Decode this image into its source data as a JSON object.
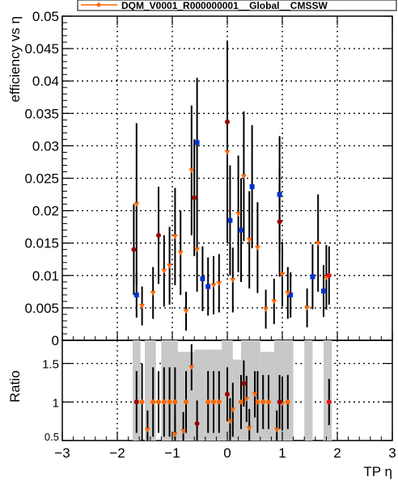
{
  "legend": {
    "entry": "DQM_V0001_R000000001__Global__CMSSW"
  },
  "colors": {
    "series_orange": "#ff6600",
    "series_darkred": "#990000",
    "series_blue": "#0033cc",
    "series_red": "#ee1111",
    "ratio_band": "#c8c8c8"
  },
  "chart_data": [
    {
      "type": "scatter",
      "panel": "top",
      "ylabel": "efficiency vs η",
      "xlim": [
        -3,
        3
      ],
      "ylim": [
        0,
        0.05
      ],
      "x_ticks": [
        -3,
        -2,
        -1,
        0,
        1,
        2,
        3
      ],
      "y_ticks": [
        "0",
        "0.005",
        "0.01",
        "0.015",
        "0.02",
        "0.025",
        "0.03",
        "0.035",
        "0.04",
        "0.045",
        "0.05"
      ],
      "grid": true,
      "legend_placement": "top",
      "series": [
        {
          "marker": "blue-square",
          "points": [
            {
              "x": -1.65,
              "y": 0.007,
              "err": 0.0035
            },
            {
              "x": -0.55,
              "y": 0.0305,
              "err": 0.01
            },
            {
              "x": -0.45,
              "y": 0.0095,
              "err": 0.005
            },
            {
              "x": -0.35,
              "y": 0.0083,
              "err": 0.0045
            },
            {
              "x": 0.05,
              "y": 0.0185,
              "err": 0.0085
            },
            {
              "x": 0.25,
              "y": 0.017,
              "err": 0.008
            },
            {
              "x": 0.45,
              "y": 0.0237,
              "err": 0.0095
            },
            {
              "x": 0.95,
              "y": 0.0225,
              "err": 0.009
            },
            {
              "x": 1.15,
              "y": 0.007,
              "err": 0.0035
            },
            {
              "x": 1.55,
              "y": 0.0098,
              "err": 0.005
            },
            {
              "x": 1.75,
              "y": 0.0076,
              "err": 0.004
            }
          ]
        },
        {
          "marker": "orange-triangle",
          "points": [
            {
              "x": -1.65,
              "y": 0.021,
              "err": 0.0125
            },
            {
              "x": -1.55,
              "y": 0.0053,
              "err": 0.003
            },
            {
              "x": -1.35,
              "y": 0.0073,
              "err": 0.004
            },
            {
              "x": -1.15,
              "y": 0.0107,
              "err": 0.0055
            },
            {
              "x": -1.05,
              "y": 0.0115,
              "err": 0.006
            },
            {
              "x": -0.95,
              "y": 0.016,
              "err": 0.0075
            },
            {
              "x": -0.85,
              "y": 0.0135,
              "err": 0.0065
            },
            {
              "x": -0.75,
              "y": 0.0045,
              "err": 0.003
            },
            {
              "x": -0.65,
              "y": 0.0262,
              "err": 0.01
            },
            {
              "x": -0.55,
              "y": 0.014,
              "err": 0.0065
            },
            {
              "x": -0.25,
              "y": 0.0085,
              "err": 0.0045
            },
            {
              "x": -0.15,
              "y": 0.0088,
              "err": 0.0045
            },
            {
              "x": 0.0,
              "y": 0.029,
              "err": 0.014
            },
            {
              "x": 0.1,
              "y": 0.0093,
              "err": 0.005
            },
            {
              "x": 0.2,
              "y": 0.0195,
              "err": 0.009
            },
            {
              "x": 0.3,
              "y": 0.0253,
              "err": 0.01
            },
            {
              "x": 0.4,
              "y": 0.0155,
              "err": 0.0075
            },
            {
              "x": 0.55,
              "y": 0.0143,
              "err": 0.007
            },
            {
              "x": 0.7,
              "y": 0.0048,
              "err": 0.003
            },
            {
              "x": 0.85,
              "y": 0.006,
              "err": 0.0035
            },
            {
              "x": 1.0,
              "y": 0.0102,
              "err": 0.005
            },
            {
              "x": 1.1,
              "y": 0.0073,
              "err": 0.004
            },
            {
              "x": 1.45,
              "y": 0.005,
              "err": 0.003
            },
            {
              "x": 1.65,
              "y": 0.015,
              "err": 0.0075
            },
            {
              "x": 1.8,
              "y": 0.0097,
              "err": 0.005
            }
          ]
        },
        {
          "marker": "darkred-circle",
          "points": [
            {
              "x": -1.7,
              "y": 0.014,
              "err": 0.007
            },
            {
              "x": -1.25,
              "y": 0.0162,
              "err": 0.0075
            },
            {
              "x": -0.6,
              "y": 0.022,
              "err": 0.009
            },
            {
              "x": 0.0,
              "y": 0.0337,
              "err": 0.0125
            },
            {
              "x": 0.95,
              "y": 0.0183,
              "err": 0.0085
            }
          ]
        },
        {
          "marker": "red-circle",
          "points": [
            {
              "x": 1.85,
              "y": 0.01,
              "err": 0.0045
            }
          ]
        }
      ]
    },
    {
      "type": "scatter",
      "panel": "bottom",
      "ylabel": "Ratio",
      "xlabel": "TP η",
      "xlim": [
        -3,
        3
      ],
      "ylim": [
        0.5,
        1.8
      ],
      "x_tick_labels": [
        "−3",
        "−2",
        "−1",
        "0",
        "1",
        "2",
        "3"
      ],
      "y_ticks": [
        "0.5",
        "1",
        "1.5"
      ],
      "grid": true,
      "band": [
        {
          "x0": -1.72,
          "x1": -1.58,
          "y0": 0.5,
          "y1": 1.8
        },
        {
          "x0": -1.5,
          "x1": -1.4,
          "y0": 0.5,
          "y1": 1.8
        },
        {
          "x0": -1.4,
          "x1": -1.3,
          "y0": 0.5,
          "y1": 1.8
        },
        {
          "x0": -1.2,
          "x1": -1.0,
          "y0": 0.5,
          "y1": 1.8
        },
        {
          "x0": -1.0,
          "x1": -0.9,
          "y0": 0.5,
          "y1": 1.8
        },
        {
          "x0": -0.9,
          "x1": -0.6,
          "y0": 0.5,
          "y1": 1.65
        },
        {
          "x0": -0.6,
          "x1": -0.4,
          "y0": 0.5,
          "y1": 1.68
        },
        {
          "x0": -0.4,
          "x1": -0.1,
          "y0": 0.5,
          "y1": 1.68
        },
        {
          "x0": -0.1,
          "x1": 0.1,
          "y0": 0.5,
          "y1": 1.8
        },
        {
          "x0": 0.1,
          "x1": 0.25,
          "y0": 0.5,
          "y1": 1.55
        },
        {
          "x0": 0.25,
          "x1": 0.6,
          "y0": 0.5,
          "y1": 1.8
        },
        {
          "x0": 0.6,
          "x1": 0.85,
          "y0": 0.5,
          "y1": 1.65
        },
        {
          "x0": 0.85,
          "x1": 1.2,
          "y0": 0.5,
          "y1": 1.8
        },
        {
          "x0": 1.4,
          "x1": 1.55,
          "y0": 0.5,
          "y1": 1.8
        },
        {
          "x0": 1.75,
          "x1": 1.9,
          "y0": 0.5,
          "y1": 1.8
        }
      ],
      "series": [
        {
          "marker": "orange-circle",
          "points": [
            {
              "x": -1.55,
              "y": 1.0,
              "err": 0.5
            },
            {
              "x": -1.35,
              "y": 1.0,
              "err": 0.45
            },
            {
              "x": -1.25,
              "y": 1.0,
              "err": 0.4
            },
            {
              "x": -1.15,
              "y": 1.0,
              "err": 0.45
            },
            {
              "x": -1.05,
              "y": 1.0,
              "err": 0.45
            },
            {
              "x": -0.95,
              "y": 1.0,
              "err": 0.45
            },
            {
              "x": -0.75,
              "y": 1.0,
              "err": 0.4
            },
            {
              "x": -0.35,
              "y": 1.0,
              "err": 0.4
            },
            {
              "x": -0.25,
              "y": 1.0,
              "err": 0.4
            },
            {
              "x": -0.15,
              "y": 1.0,
              "err": 0.4
            },
            {
              "x": 0.25,
              "y": 1.0,
              "err": 0.35
            },
            {
              "x": 0.55,
              "y": 1.0,
              "err": 0.4
            },
            {
              "x": 0.65,
              "y": 1.0,
              "err": 0.35
            },
            {
              "x": 0.75,
              "y": 1.0,
              "err": 0.35
            },
            {
              "x": 1.1,
              "y": 1.0,
              "err": 0.35
            }
          ]
        },
        {
          "marker": "orange-triangle",
          "points": [
            {
              "x": -1.45,
              "y": 0.64,
              "err": 0.25
            },
            {
              "x": -0.95,
              "y": 0.58,
              "err": 0.25
            },
            {
              "x": -0.8,
              "y": 0.62,
              "err": 0.25
            },
            {
              "x": -0.65,
              "y": 1.45,
              "err": 0.3
            },
            {
              "x": 0.05,
              "y": 0.75,
              "err": 0.3
            },
            {
              "x": 0.1,
              "y": 0.9,
              "err": 0.35
            },
            {
              "x": 0.35,
              "y": 1.04,
              "err": 0.3
            },
            {
              "x": 0.4,
              "y": 0.66,
              "err": 0.25
            },
            {
              "x": 0.5,
              "y": 1.1,
              "err": 0.3
            },
            {
              "x": 0.9,
              "y": 0.64,
              "err": 0.25
            },
            {
              "x": 1.0,
              "y": 0.98,
              "err": 0.35
            }
          ]
        },
        {
          "marker": "darkred-circle",
          "points": [
            {
              "x": -1.65,
              "y": 1.0,
              "err": 0.4
            },
            {
              "x": -0.55,
              "y": 0.72,
              "err": 0.3
            },
            {
              "x": 0.0,
              "y": 1.1,
              "err": 0.35
            },
            {
              "x": 0.3,
              "y": 1.24,
              "err": 0.3
            },
            {
              "x": 0.95,
              "y": 1.0,
              "err": 0.35
            }
          ]
        },
        {
          "marker": "red-circle",
          "points": [
            {
              "x": 1.85,
              "y": 1.0,
              "err": 0.3
            }
          ]
        }
      ]
    }
  ]
}
